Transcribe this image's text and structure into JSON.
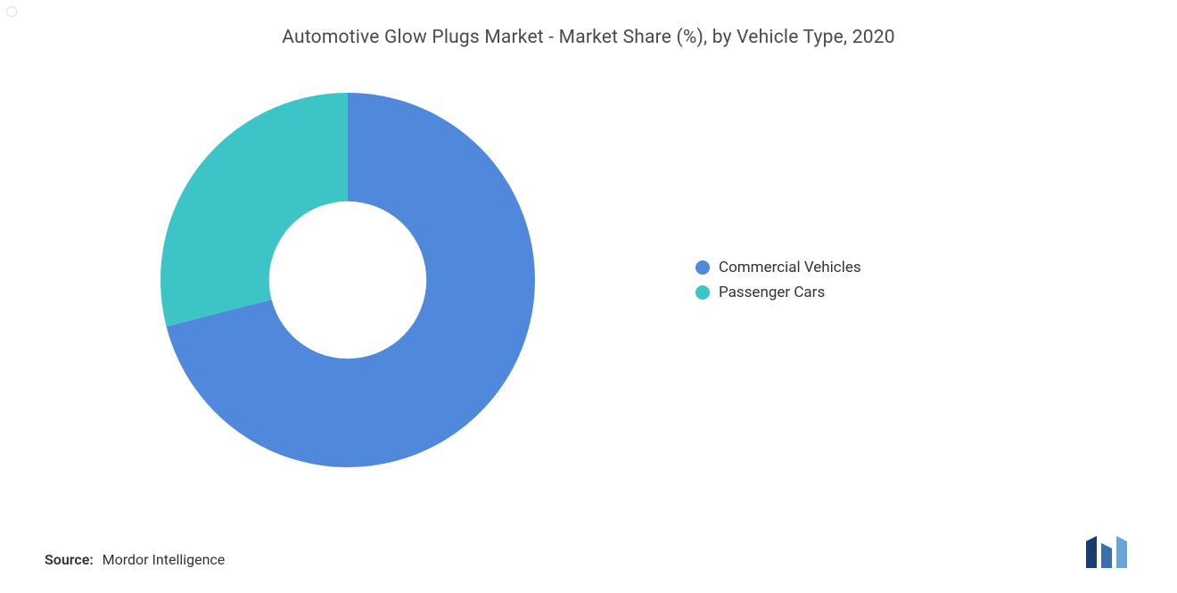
{
  "chart": {
    "type": "donut",
    "title": "Automotive Glow Plugs Market - Market Share (%), by Vehicle Type, 2020",
    "title_fontsize": 21,
    "title_color": "#4a4a4a",
    "background_color": "#ffffff",
    "inner_radius_ratio": 0.42,
    "outer_radius": 210,
    "start_angle_deg": 0,
    "slices": [
      {
        "label": "Commercial Vehicles",
        "value": 71,
        "color": "#5089dc"
      },
      {
        "label": "Passenger Cars",
        "value": 29,
        "color": "#3cc4c7"
      }
    ],
    "legend": {
      "position": "right",
      "marker_shape": "circle",
      "marker_size": 16,
      "fontsize": 17,
      "text_color": "#333333"
    }
  },
  "source": {
    "label": "Source:",
    "value": "Mordor Intelligence",
    "fontsize": 16,
    "label_weight": 600,
    "text_color": "#333333"
  },
  "logo": {
    "bars": [
      {
        "color": "#1c3b6e"
      },
      {
        "color": "#3a6fb0"
      },
      {
        "color": "#6aa5d8"
      }
    ],
    "background_color": "#ffffff"
  }
}
